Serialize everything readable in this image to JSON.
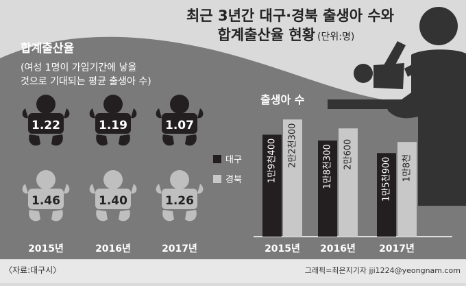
{
  "title_line1": "최근 3년간 대구·경북 출생아 수와",
  "title_line2": "합계출산율 현황",
  "unit": "(단위:명)",
  "tfr_title": "합계출산율",
  "tfr_desc_line1": "(여성 1명이 가임기간에 낳을",
  "tfr_desc_line2": "것으로 기대되는 평균 출생아 수)",
  "births_title": "출생아 수",
  "source": "〈자료:대구시〉",
  "credit": "그래픽=최은지기자 jji1224@yeongnam.com",
  "colors": {
    "daegu": "#231f20",
    "gyeongbuk": "#c8c8c8",
    "background": "#dadada",
    "dark_band": "#7a7a7a"
  },
  "icons": {
    "baby": "baby-icon",
    "parent": "parent-with-baby-icon"
  },
  "chart_data": [
    {
      "type": "table",
      "title": "합계출산율",
      "categories": [
        "2015년",
        "2016년",
        "2017년"
      ],
      "series": [
        {
          "name": "대구",
          "values": [
            1.22,
            1.19,
            1.07
          ],
          "labels": [
            "1.22",
            "1.19",
            "1.07"
          ]
        },
        {
          "name": "경북",
          "values": [
            1.46,
            1.4,
            1.26
          ],
          "labels": [
            "1.46",
            "1.40",
            "1.26"
          ]
        }
      ]
    },
    {
      "type": "bar",
      "title": "출생아 수",
      "categories": [
        "2015년",
        "2016년",
        "2017년"
      ],
      "series": [
        {
          "name": "대구",
          "values": [
            19400,
            18300,
            15900
          ],
          "labels": [
            "1만9천400",
            "1만8천300",
            "1만5천900"
          ]
        },
        {
          "name": "경북",
          "values": [
            22300,
            20600,
            18000
          ],
          "labels": [
            "2만2천300",
            "2만600",
            "1만8천"
          ]
        }
      ],
      "ylim": [
        0,
        23500
      ],
      "legend": "left"
    }
  ]
}
